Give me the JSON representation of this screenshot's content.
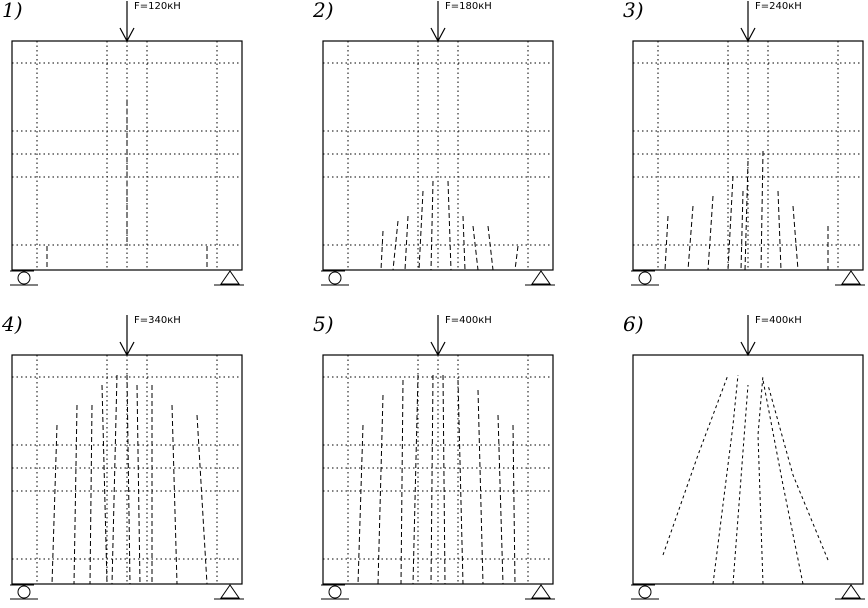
{
  "panels": [
    {
      "label": "1)",
      "force": "F=120кН"
    },
    {
      "label": "2)",
      "force": "F=180кН"
    },
    {
      "label": "3)",
      "force": "F=240кН"
    },
    {
      "label": "4)",
      "force": "F=340кН"
    },
    {
      "label": "5)",
      "force": "F=400кН"
    },
    {
      "label": "6)",
      "force": "F=400кН"
    }
  ]
}
